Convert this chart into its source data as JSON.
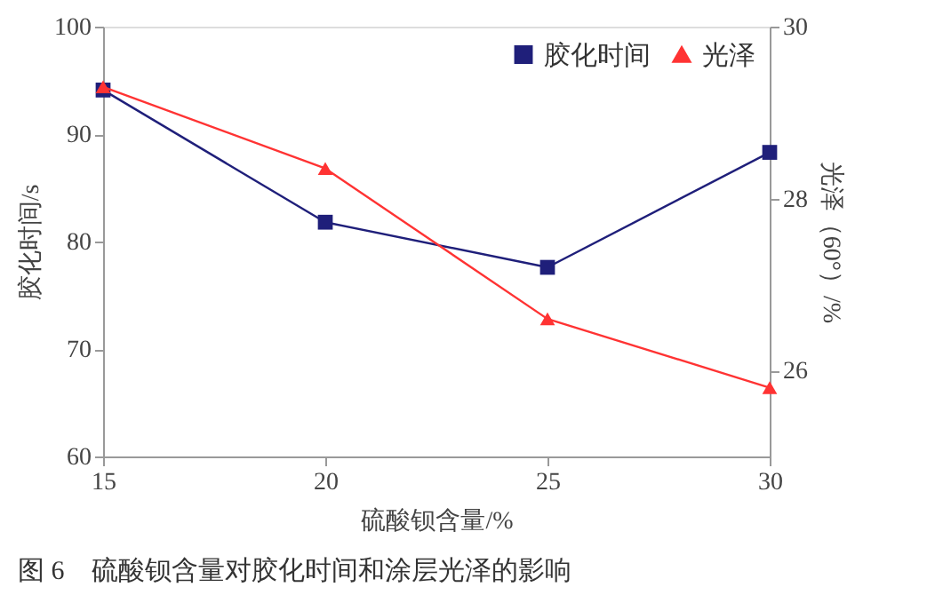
{
  "chart_data": {
    "type": "line",
    "xlabel": "硫酸钡含量/%",
    "ylabel": "胶化时间/s",
    "y2label": "光泽（60°）/%",
    "x": [
      15,
      20,
      25,
      30
    ],
    "xlim": [
      15,
      30
    ],
    "xticks": [
      15,
      20,
      25,
      30
    ],
    "ylim": [
      60,
      100
    ],
    "yticks": [
      60,
      70,
      80,
      90,
      100
    ],
    "y2lim": [
      25,
      30
    ],
    "y2ticks": [
      26,
      28,
      30
    ],
    "series": [
      {
        "name": "胶化时间",
        "color": "#1f1f7a",
        "marker": "square",
        "values": [
          94.1,
          81.8,
          77.6,
          88.3
        ]
      },
      {
        "name": "光泽",
        "color": "#ff3333",
        "marker": "triangle",
        "axis": "y2",
        "values": [
          29.3,
          28.35,
          26.6,
          25.8
        ]
      }
    ],
    "legend": "top right",
    "grid": false,
    "annotations": [
      "图 6　硫酸钡含量对胶化时间和涂层光泽的影响"
    ]
  }
}
